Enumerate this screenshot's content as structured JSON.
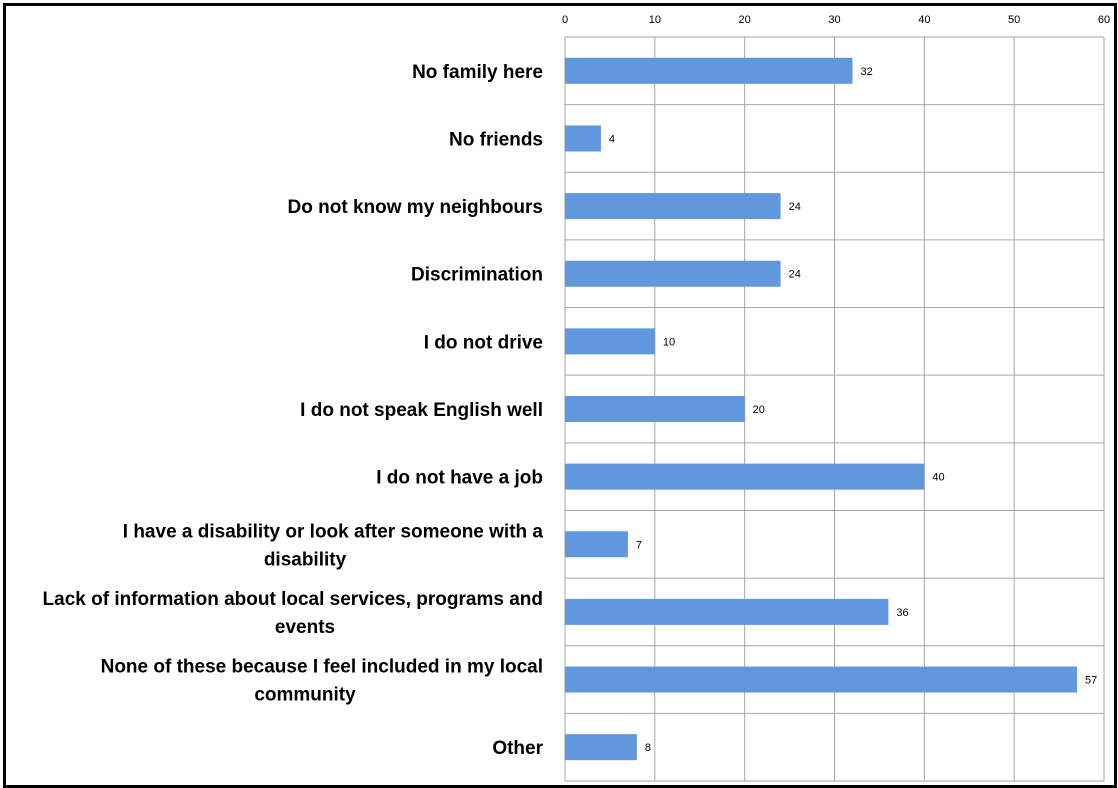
{
  "chart_data": {
    "type": "bar",
    "orientation": "horizontal",
    "categories": [
      "No family here",
      "No friends",
      "Do not know my neighbours",
      "Discrimination",
      "I do not drive",
      "I do not speak English well",
      "I do not have a job",
      "I have a disability or look after someone with a disability",
      "Lack of information about local services, programs and events",
      "None of these because I feel included in my local community",
      "Other"
    ],
    "category_lines": [
      [
        "No family here"
      ],
      [
        "No friends"
      ],
      [
        "Do not know my neighbours"
      ],
      [
        "Discrimination"
      ],
      [
        "I do not drive"
      ],
      [
        "I do not speak English well"
      ],
      [
        "I do not have a job"
      ],
      [
        "I have a disability  or look after someone with a",
        "disability"
      ],
      [
        "Lack of information about local services, programs and",
        "events"
      ],
      [
        "None of these because I feel included in my local",
        "community"
      ],
      [
        "Other"
      ]
    ],
    "values": [
      32,
      4,
      24,
      24,
      10,
      20,
      40,
      7,
      36,
      57,
      8
    ],
    "data_labels": [
      "32",
      "4",
      "24",
      "24",
      "10",
      "20",
      "40",
      "7",
      "36",
      "57",
      "8"
    ],
    "xlim": [
      0,
      60
    ],
    "x_ticks": [
      0,
      10,
      20,
      30,
      40,
      50,
      60
    ],
    "x_axis_position": "top",
    "grid": true,
    "bar_color": "#6198DD",
    "grid_color": "#A6A6A6",
    "title": "",
    "xlabel": "",
    "ylabel": ""
  }
}
